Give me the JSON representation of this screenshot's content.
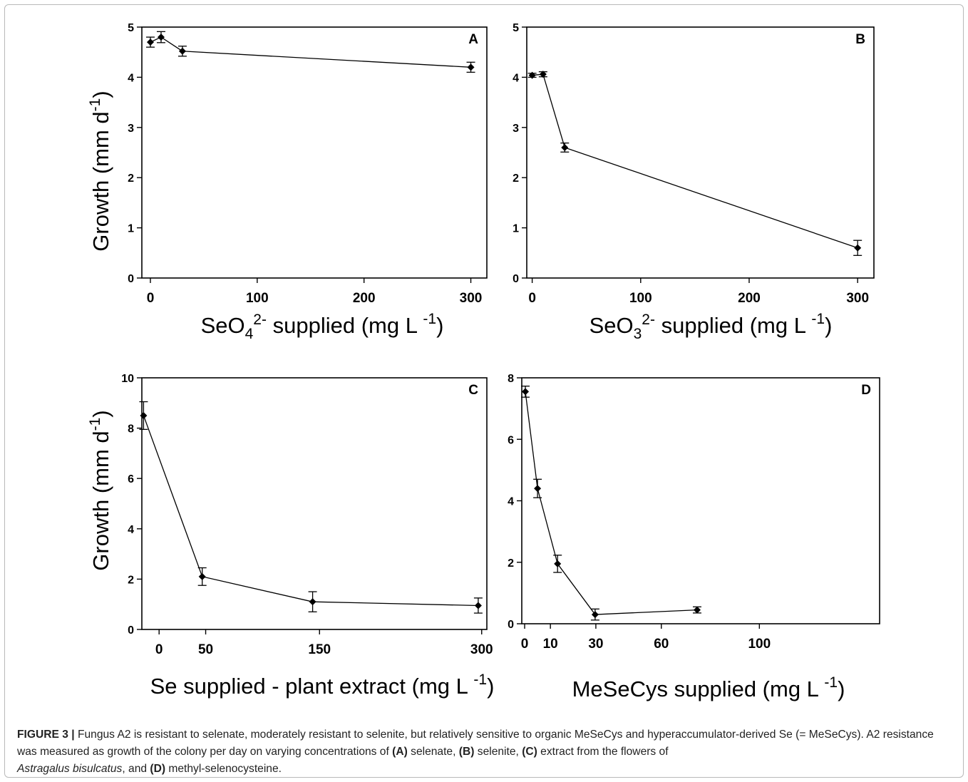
{
  "chart_data": [
    {
      "type": "line",
      "panel_label": "A",
      "xlabel": "SeO4 2- supplied (mg L -1)",
      "xlabel_parts": {
        "pre": "SeO",
        "sub": "4",
        "sup": "2-",
        "post": " supplied (mg L",
        "unit_sup": "-1",
        "end": ")"
      },
      "ylabel": "Growth (mm d-1)",
      "xticks": [
        0,
        100,
        200,
        300
      ],
      "yticks": [
        0,
        1,
        2,
        3,
        4,
        5
      ],
      "xlim": [
        -8,
        315
      ],
      "ylim": [
        0,
        5
      ],
      "series": [
        {
          "x": [
            0,
            10,
            30,
            300
          ],
          "y": [
            4.7,
            4.8,
            4.52,
            4.2
          ],
          "err": [
            0.1,
            0.11,
            0.1,
            0.1
          ]
        }
      ]
    },
    {
      "type": "line",
      "panel_label": "B",
      "xlabel": "SeO3 2- supplied (mg L -1)",
      "xlabel_parts": {
        "pre": "SeO",
        "sub": "3",
        "sup": "2-",
        "post": " supplied (mg L",
        "unit_sup": "-1",
        "end": ")"
      },
      "ylabel": "",
      "xticks": [
        0,
        100,
        200,
        300
      ],
      "yticks": [
        0,
        1,
        2,
        3,
        4,
        5
      ],
      "xlim": [
        -5,
        315
      ],
      "ylim": [
        0,
        5
      ],
      "series": [
        {
          "x": [
            0,
            10,
            30,
            300
          ],
          "y": [
            4.04,
            4.06,
            2.6,
            0.6
          ],
          "err": [
            0.04,
            0.05,
            0.09,
            0.15
          ]
        }
      ]
    },
    {
      "type": "line",
      "panel_label": "C",
      "xlabel": "Se supplied - plant extract (mg L -1)",
      "xlabel_parts": {
        "pre": "Se supplied - plant extract (mg L",
        "unit_sup": "-1",
        "end": ")"
      },
      "ylabel": "Growth (mm d-1)",
      "xticks": [
        0,
        50,
        150,
        300
      ],
      "xtick_positions": [
        0.05,
        0.185,
        0.515,
        0.985
      ],
      "yticks": [
        0,
        2,
        4,
        6,
        8,
        10
      ],
      "ylim": [
        0,
        10
      ],
      "series": [
        {
          "x": [
            0,
            50,
            150,
            300
          ],
          "x_positions": [
            0.005,
            0.175,
            0.495,
            0.975
          ],
          "y": [
            8.5,
            2.1,
            1.1,
            0.95
          ],
          "err": [
            0.55,
            0.35,
            0.4,
            0.3
          ]
        }
      ]
    },
    {
      "type": "line",
      "panel_label": "D",
      "xlabel": "MeSeCys supplied (mg L -1)",
      "xlabel_parts": {
        "pre": "MeSeCys supplied (mg L",
        "unit_sup": "-1",
        "end": ")"
      },
      "ylabel": "",
      "xticks": [
        0,
        10,
        30,
        60,
        100
      ],
      "xtick_positions": [
        0.008,
        0.08,
        0.207,
        0.39,
        0.664
      ],
      "yticks": [
        0,
        2,
        4,
        6,
        8
      ],
      "ylim": [
        0,
        8
      ],
      "series": [
        {
          "x": [
            0,
            5,
            13,
            30,
            75
          ],
          "x_positions": [
            0.01,
            0.044,
            0.1,
            0.205,
            0.49
          ],
          "y": [
            7.55,
            4.4,
            1.95,
            0.3,
            0.45
          ],
          "err": [
            0.18,
            0.3,
            0.28,
            0.18,
            0.1
          ]
        }
      ]
    }
  ],
  "caption": {
    "lead": "FIGURE 3 |",
    "text1": " Fungus A2 is resistant to selenate, moderately resistant to selenite, but relatively sensitive to organic MeSeCys and hyperaccumulator-derived Se (= MeSeCys). A2 resistance was measured as growth of the colony per day on varying concentrations of ",
    "ref_a": "(A)",
    "text_a": " selenate, ",
    "ref_b": "(B)",
    "text_b": " selenite, ",
    "ref_c": "(C)",
    "text_c": " extract from the flowers of ",
    "species": "Astragalus bisulcatus",
    "text_d_pre": ", and ",
    "ref_d": "(D)",
    "text_d": " methyl-selenocysteine."
  }
}
